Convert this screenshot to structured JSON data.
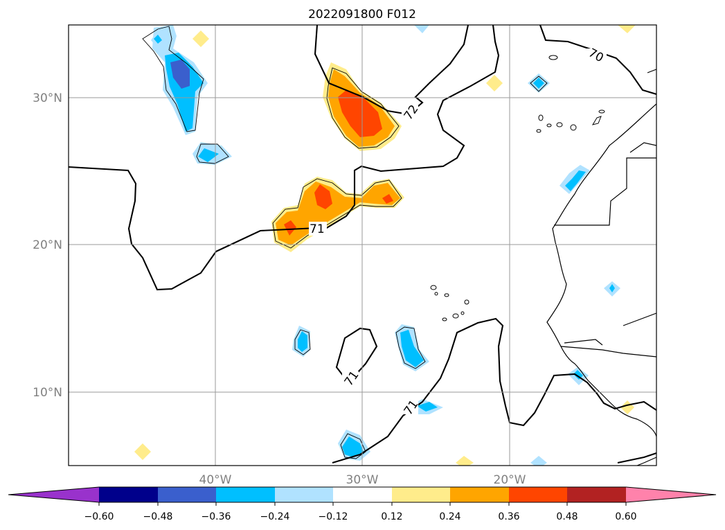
{
  "title": "2022091800 F012",
  "map": {
    "lon_range": [
      -50,
      10
    ],
    "lat_range": [
      5,
      35
    ],
    "lon_grid": [
      -40,
      -30,
      -20
    ],
    "lat_grid": [
      10,
      20,
      30
    ],
    "lon_labels": [
      "40°W",
      "30°W",
      "20°W"
    ],
    "lat_labels": [
      "10°N",
      "20°N",
      "30°N"
    ],
    "grid": true,
    "contour_labels": [
      "70",
      "72",
      "71",
      "71",
      "71"
    ]
  },
  "colorbar": {
    "orientation": "horizontal",
    "extend": "both",
    "ticks": [
      "−0.60",
      "−0.48",
      "−0.36",
      "−0.24",
      "−0.12",
      "0.12",
      "0.24",
      "0.36",
      "0.48",
      "0.60"
    ],
    "colors": [
      "#9932cc",
      "#00008b",
      "#3a5fcd",
      "#00bfff",
      "#b0e2ff",
      "#ffffff",
      "#ffec8b",
      "#ffa500",
      "#ff4500",
      "#b22222",
      "#ff82ab"
    ]
  }
}
